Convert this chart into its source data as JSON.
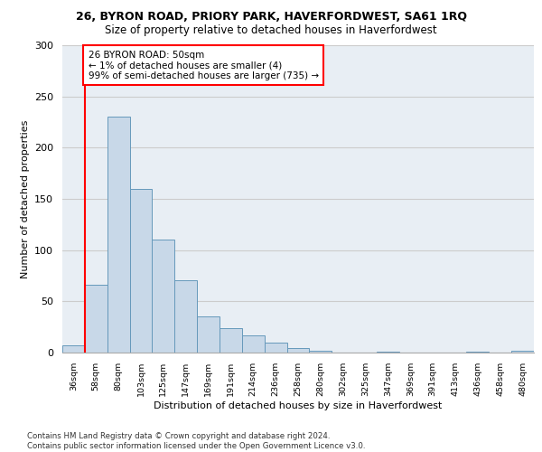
{
  "title_line1": "26, BYRON ROAD, PRIORY PARK, HAVERFORDWEST, SA61 1RQ",
  "title_line2": "Size of property relative to detached houses in Haverfordwest",
  "xlabel": "Distribution of detached houses by size in Haverfordwest",
  "ylabel": "Number of detached properties",
  "footnote": "Contains HM Land Registry data © Crown copyright and database right 2024.\nContains public sector information licensed under the Open Government Licence v3.0.",
  "categories": [
    "36sqm",
    "58sqm",
    "80sqm",
    "103sqm",
    "125sqm",
    "147sqm",
    "169sqm",
    "191sqm",
    "214sqm",
    "236sqm",
    "258sqm",
    "280sqm",
    "302sqm",
    "325sqm",
    "347sqm",
    "369sqm",
    "391sqm",
    "413sqm",
    "436sqm",
    "458sqm",
    "480sqm"
  ],
  "values": [
    7,
    66,
    230,
    160,
    110,
    71,
    35,
    24,
    17,
    10,
    4,
    2,
    0,
    0,
    1,
    0,
    0,
    0,
    1,
    0,
    2
  ],
  "bar_color": "#c8d8e8",
  "bar_edge_color": "#6699bb",
  "annotation_text": "26 BYRON ROAD: 50sqm\n← 1% of detached houses are smaller (4)\n99% of semi-detached houses are larger (735) →",
  "annotation_box_color": "white",
  "annotation_box_edge": "red",
  "red_line_color": "red",
  "ylim": [
    0,
    300
  ],
  "yticks": [
    0,
    50,
    100,
    150,
    200,
    250,
    300
  ],
  "grid_color": "#cccccc",
  "background_color": "white",
  "plot_bg_color": "#e8eef4"
}
